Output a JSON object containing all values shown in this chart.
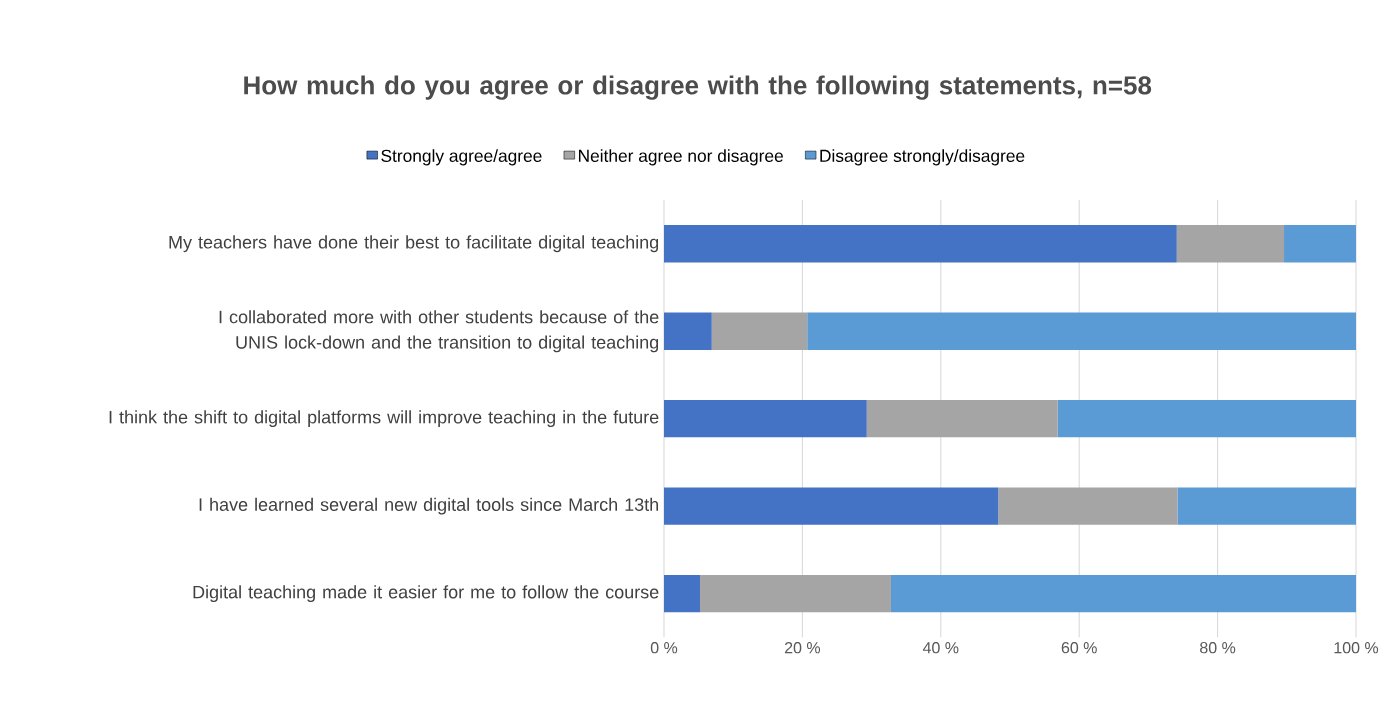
{
  "chart_data": {
    "type": "bar",
    "orientation": "horizontal",
    "stacked": true,
    "title": "How much do you agree or disagree with the following statements, n=58",
    "categories": [
      "My teachers have done their best to facilitate digital teaching",
      "I collaborated more with other students because of the UNIS lock-down and the transition to digital teaching",
      "I think the shift to digital platforms will improve teaching in the future",
      "I have learned several new digital tools since March 13th",
      "Digital teaching made it easier for me to follow the course"
    ],
    "series": [
      {
        "name": "Strongly agree/agree",
        "color": "#4472c4",
        "values": [
          74.1,
          6.9,
          29.3,
          48.3,
          5.2
        ]
      },
      {
        "name": "Neither agree nor disagree",
        "color": "#a5a5a5",
        "values": [
          15.5,
          13.8,
          27.6,
          25.9,
          27.6
        ]
      },
      {
        "name": "Disagree strongly/disagree",
        "color": "#5b9bd5",
        "values": [
          10.4,
          79.3,
          43.1,
          25.8,
          67.2
        ]
      }
    ],
    "xlim": [
      0,
      100
    ],
    "xticks": [
      {
        "value": 0,
        "label": "0 %"
      },
      {
        "value": 20,
        "label": "20 %"
      },
      {
        "value": 40,
        "label": "40 %"
      },
      {
        "value": 60,
        "label": "60 %"
      },
      {
        "value": 80,
        "label": "80 %"
      },
      {
        "value": 100,
        "label": "100 %"
      }
    ],
    "grid": "x",
    "legend": "top"
  }
}
